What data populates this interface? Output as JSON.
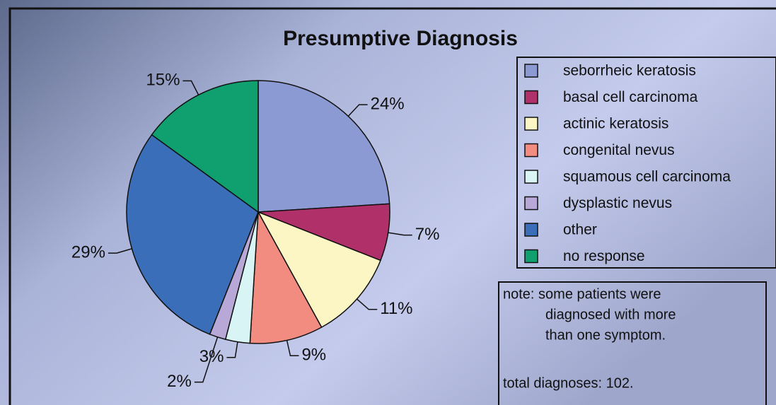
{
  "chart_data": {
    "type": "pie",
    "title": "Presumptive Diagnosis",
    "categories": [
      "seborrheic keratosis",
      "basal cell carcinoma",
      "actinic keratosis",
      "congenital nevus",
      "squamous cell carcinoma",
      "dysplastic nevus",
      "other",
      "no response"
    ],
    "values": [
      24,
      7,
      11,
      9,
      3,
      2,
      29,
      15
    ],
    "value_labels": [
      "24%",
      "7%",
      "11%",
      "9%",
      "3%",
      "2%",
      "29%",
      "15%"
    ],
    "colors": [
      "#8c9ad4",
      "#b0306a",
      "#fbf6c4",
      "#f28c80",
      "#d8f4f4",
      "#b8a8d8",
      "#3a6eb8",
      "#10a070"
    ],
    "legend": "right",
    "note": [
      "note: some patients were",
      "diagnosed with more",
      "than one symptom."
    ],
    "total": "total diagnoses:  102."
  }
}
